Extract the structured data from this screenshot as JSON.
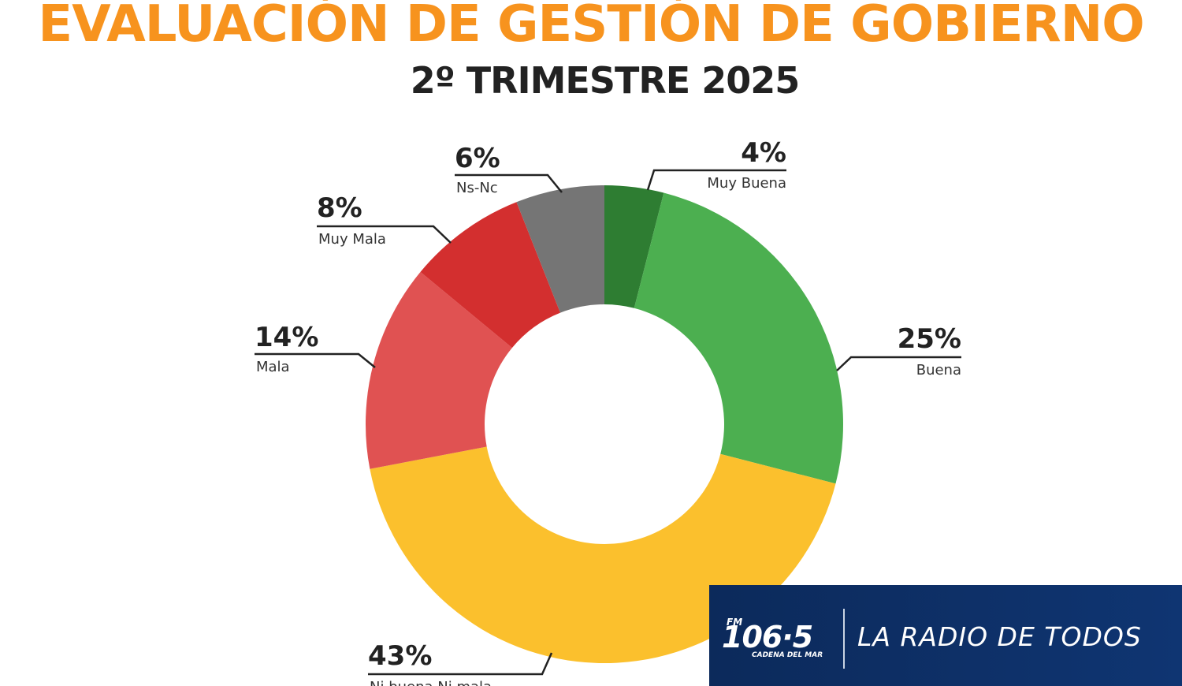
{
  "header": {
    "title": "EVALUACIÓN DE GESTIÓN DE GOBIERNO",
    "subtitle": "2º TRIMESTRE 2025"
  },
  "chart_data": {
    "type": "pie",
    "donut": true,
    "title": "EVALUACIÓN DE GESTIÓN DE GOBIERNO",
    "subtitle": "2º TRIMESTRE 2025",
    "unit": "%",
    "slices": [
      {
        "label": "Muy Buena",
        "value": 4,
        "display": "4%",
        "color": "#2e7d32"
      },
      {
        "label": "Buena",
        "value": 25,
        "display": "25%",
        "color": "#4caf50"
      },
      {
        "label": "Ni buena Ni mala",
        "value": 43,
        "display": "43%",
        "color": "#fbc02d"
      },
      {
        "label": "Mala",
        "value": 14,
        "display": "14%",
        "color": "#e05252"
      },
      {
        "label": "Muy Mala",
        "value": 8,
        "display": "8%",
        "color": "#d32f2f"
      },
      {
        "label": "Ns-Nc",
        "value": 6,
        "display": "6%",
        "color": "#757575"
      }
    ]
  },
  "brand": {
    "band": "FM",
    "frequency": "106·5",
    "station": "CADENA DEL MAR",
    "slogan": "LA RADIO DE TODOS",
    "background": "#0c2a5b"
  }
}
